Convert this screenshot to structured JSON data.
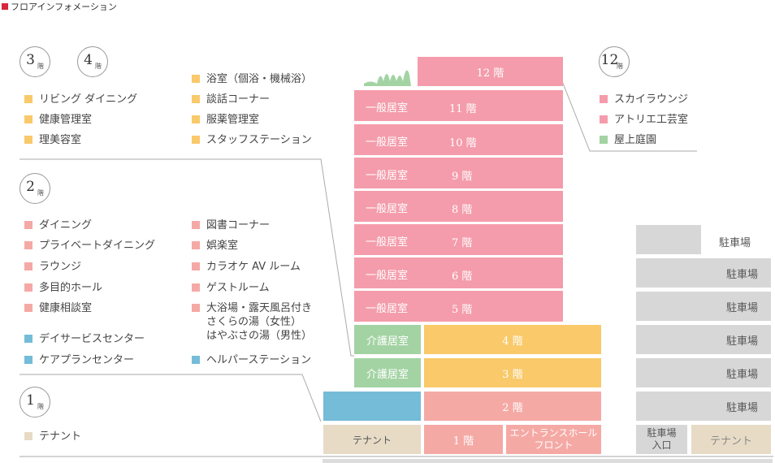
{
  "header": {
    "title": "フロアインフォメーション"
  },
  "kai": "階",
  "badges": {
    "f3": "3",
    "f4": "4",
    "f12": "12",
    "f2": "2",
    "f1": "1"
  },
  "colors": {
    "pink": "#f49cab",
    "yellow": "#f9c96a",
    "salmon": "#f5a9a5",
    "green": "#a3d3a3",
    "blue": "#74bcd8",
    "beige": "#e7dbc6",
    "gray": "#d7d7d7",
    "accent": "#d7263d"
  },
  "legend34": {
    "col1": [
      "リビング ダイニング",
      "健康管理室",
      "理美容室"
    ],
    "col2": [
      "浴室（個浴・機械浴）",
      "談話コーナー",
      "服薬管理室",
      "スタッフステーション"
    ]
  },
  "legend12": [
    "スカイラウンジ",
    "アトリエ工芸室",
    "屋上庭園"
  ],
  "legend2": {
    "col1": [
      "ダイニング",
      "プライベートダイニング",
      "ラウンジ",
      "多目的ホール",
      "健康相談室"
    ],
    "col2": [
      "図書コーナー",
      "娯楽室",
      "カラオケ AV ルーム",
      "ゲストルーム",
      "大浴場・露天風呂付き\nさくらの湯（女性）\nはやぶさの湯（男性）"
    ],
    "blue1": [
      "デイサービスセンター",
      "ケアプランセンター"
    ],
    "blue2": "ヘルパーステーション"
  },
  "legend1": [
    "テナント"
  ],
  "building": {
    "f12": "12 階",
    "general_room": "一般居室",
    "care_room": "介護居室",
    "floors_general": [
      "11 階",
      "10 階",
      "9 階",
      "8 階",
      "7 階",
      "6 階",
      "5 階"
    ],
    "f4": "4 階",
    "f3": "3 階",
    "f2": "2 階",
    "f1": "1 階",
    "tenant": "テナント",
    "entrance": "エントランスホール\nフロント"
  },
  "parking": {
    "label": "駐車場",
    "entrance": "駐車場\n入口",
    "tenant": "テナント"
  }
}
